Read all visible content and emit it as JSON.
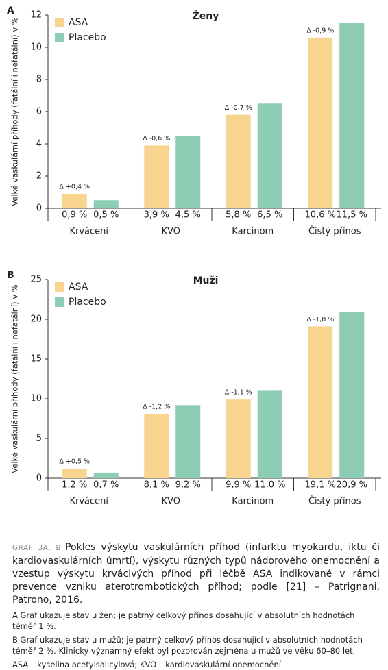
{
  "chart_data": [
    {
      "type": "bar",
      "panel": "A",
      "title": "Ženy",
      "ylabel": "Velké vaskulární příhody (fatální i nefatální) v %",
      "categories": [
        "Krvácení",
        "KVO",
        "Karcinom",
        "Čistý přínos"
      ],
      "series": [
        {
          "name": "ASA",
          "color": "#f8d48f",
          "values": [
            0.9,
            3.9,
            5.8,
            10.6
          ],
          "value_labels": [
            "0,9 %",
            "3,9 %",
            "5,8 %",
            "10,6 %"
          ]
        },
        {
          "name": "Placebo",
          "color": "#8ccdb4",
          "values": [
            0.5,
            4.5,
            6.5,
            11.5
          ],
          "value_labels": [
            "0,5 %",
            "4,5 %",
            "6,5 %",
            "11,5 %"
          ]
        }
      ],
      "annotations": [
        "Δ +0,4 %",
        "Δ -0,6 %",
        "Δ -0,7 %",
        "Δ -0,9 %"
      ],
      "ylim": [
        0,
        12
      ],
      "yticks": [
        0,
        2,
        4,
        6,
        8,
        10,
        12
      ],
      "grid": false,
      "legend": "top-left"
    },
    {
      "type": "bar",
      "panel": "B",
      "title": "Muži",
      "ylabel": "Velké vaskulární příhody (fatální i nefatální) v %",
      "categories": [
        "Krvácení",
        "KVO",
        "Karcinom",
        "Čistý přínos"
      ],
      "series": [
        {
          "name": "ASA",
          "color": "#f8d48f",
          "values": [
            1.2,
            8.1,
            9.9,
            19.1
          ],
          "value_labels": [
            "1,2 %",
            "8,1 %",
            "9,9 %",
            "19,1 %"
          ]
        },
        {
          "name": "Placebo",
          "color": "#8ccdb4",
          "values": [
            0.7,
            9.2,
            11.0,
            20.9
          ],
          "value_labels": [
            "0,7 %",
            "9,2 %",
            "11,0 %",
            "20,9 %"
          ]
        }
      ],
      "annotations": [
        "Δ +0,5 %",
        "Δ -1,2 %",
        "Δ -1,1 %",
        "Δ -1,8 %"
      ],
      "ylim": [
        0,
        25
      ],
      "yticks": [
        0,
        5,
        10,
        15,
        20,
        25
      ],
      "grid": false,
      "legend": "top-left"
    }
  ],
  "caption": {
    "label": "GRAF 3A, B",
    "text": "Pokles výskytu vaskulárních příhod (infarktu myokardu, iktu či kardiovaskulárních úmrtí), výskytu různých typů nádorového onemocnění a vzestup výskytu krvácivých příhod při léčbě ASA indikované v rámci prevence vzniku aterotrombotických příhod; podle [21] – Patrignani, Patrono, 2016.",
    "notes": [
      "A Graf ukazuje stav u žen; je patrný celkový přínos dosahující v absolutních hodnotách téměř 1 %.",
      "B Graf ukazuje stav u mužů; je patrný celkový přínos dosahující v absolutních hodnotách téměř 2 %. Klinicky významný efekt byl pozorován zejména u mužů ve věku 60–80 let.",
      "ASA – kyselina acetylsalicylová; KVO – kardiovaskulární onemocnění"
    ]
  }
}
